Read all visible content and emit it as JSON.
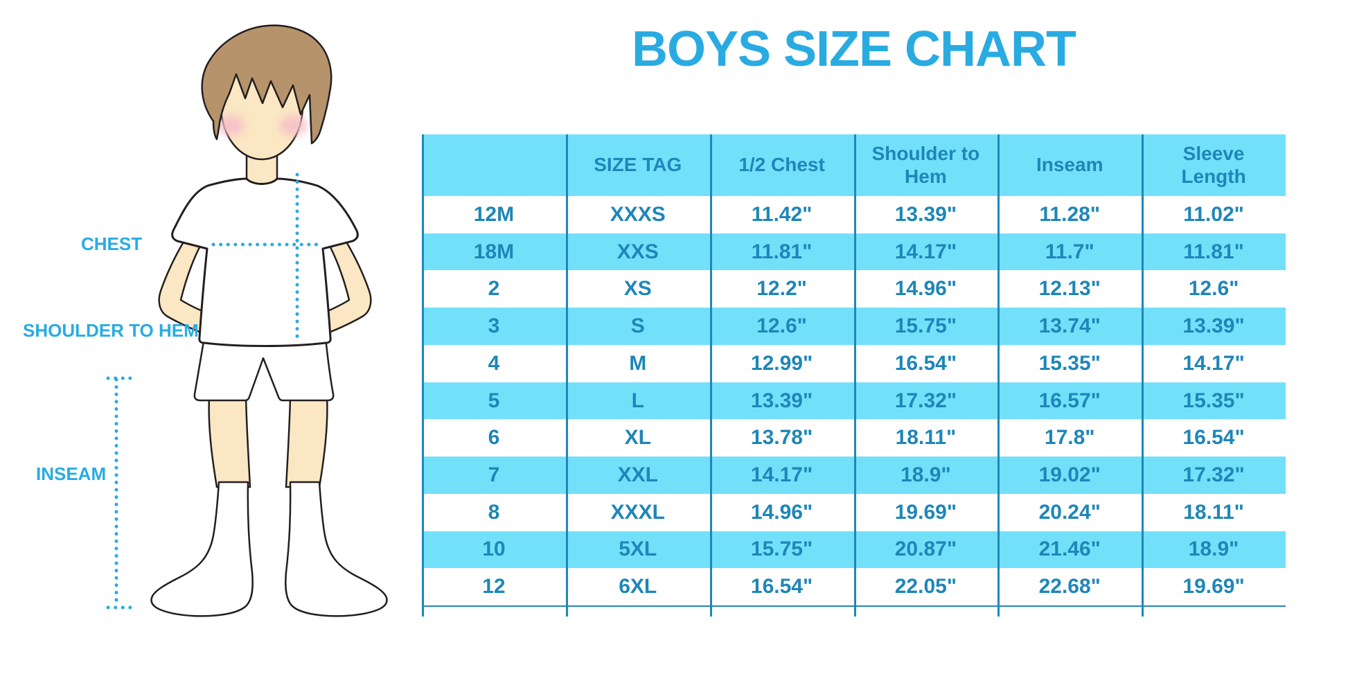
{
  "title": "BOYS SIZE CHART",
  "figure_labels": {
    "chest": "CHEST",
    "shoulder_to_hem": "SHOULDER TO HEM",
    "inseam": "INSEAM"
  },
  "colors": {
    "accent_blue": "#29ABE2",
    "table_text_blue": "#1E86B8",
    "row_highlight_cyan": "#73E0FA",
    "grid_line_blue": "#1E87B8",
    "skin": "#FBE7C3",
    "hair": "#B6936B",
    "outline": "#231F20",
    "cheek_pink": "#F5BEC9"
  },
  "table": {
    "columns": [
      "",
      "SIZE TAG",
      "1/2 Chest",
      "Shoulder to Hem",
      "Inseam",
      "Sleeve Length"
    ],
    "rows": [
      [
        "12M",
        "XXXS",
        "11.42\"",
        "13.39\"",
        "11.28\"",
        "11.02\""
      ],
      [
        "18M",
        "XXS",
        "11.81\"",
        "14.17\"",
        "11.7\"",
        "11.81\""
      ],
      [
        "2",
        "XS",
        "12.2\"",
        "14.96\"",
        "12.13\"",
        "12.6\""
      ],
      [
        "3",
        "S",
        "12.6\"",
        "15.75\"",
        "13.74\"",
        "13.39\""
      ],
      [
        "4",
        "M",
        "12.99\"",
        "16.54\"",
        "15.35\"",
        "14.17\""
      ],
      [
        "5",
        "L",
        "13.39\"",
        "17.32\"",
        "16.57\"",
        "15.35\""
      ],
      [
        "6",
        "XL",
        "13.78\"",
        "18.11\"",
        "17.8\"",
        "16.54\""
      ],
      [
        "7",
        "XXL",
        "14.17\"",
        "18.9\"",
        "19.02\"",
        "17.32\""
      ],
      [
        "8",
        "XXXL",
        "14.96\"",
        "19.69\"",
        "20.24\"",
        "18.11\""
      ],
      [
        "10",
        "5XL",
        "15.75\"",
        "20.87\"",
        "21.46\"",
        "18.9\""
      ],
      [
        "12",
        "6XL",
        "16.54\"",
        "22.05\"",
        "22.68\"",
        "19.69\""
      ]
    ]
  }
}
